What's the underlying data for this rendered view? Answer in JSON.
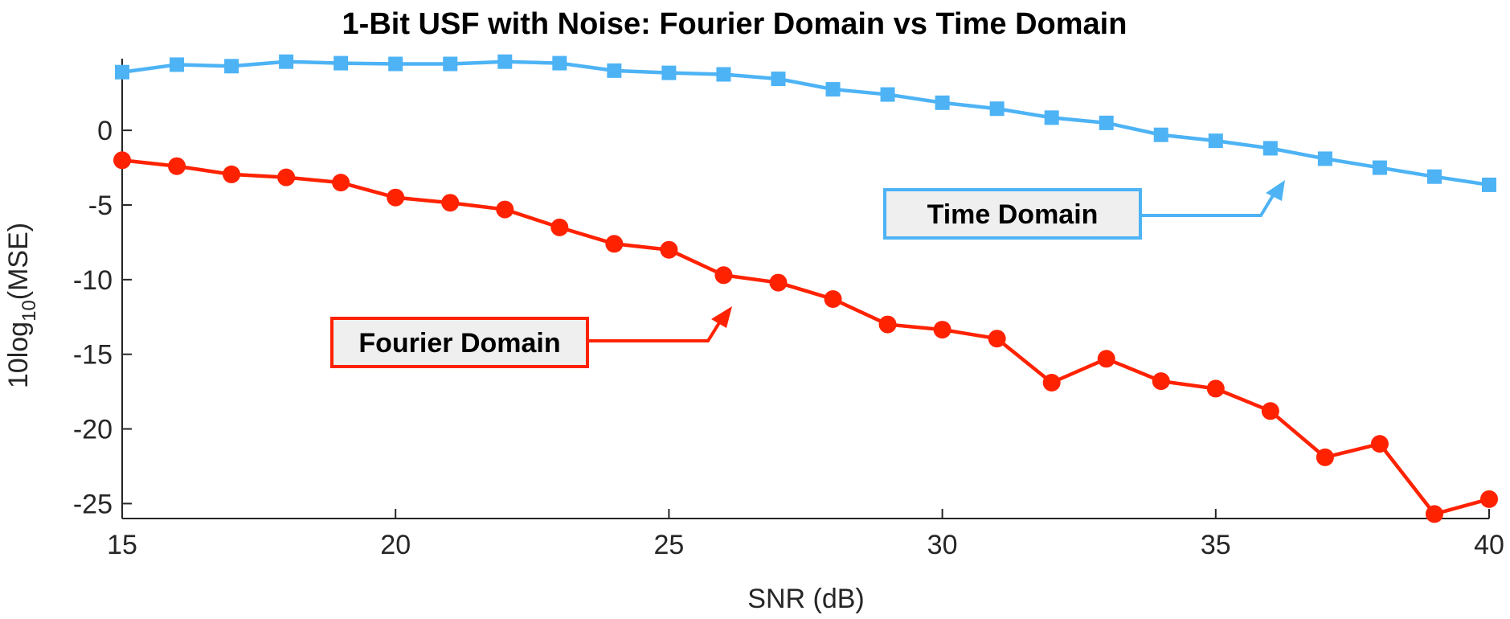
{
  "chart_data": {
    "type": "line",
    "title": "1-Bit USF with Noise: Fourier Domain vs Time Domain",
    "xlabel": "SNR (dB)",
    "ylabel_parts": [
      "10log",
      "10",
      "(MSE)"
    ],
    "xlim": [
      15,
      40
    ],
    "ylim": [
      -26,
      4.8
    ],
    "xticks": [
      15,
      20,
      25,
      30,
      35,
      40
    ],
    "yticks": [
      0,
      -5,
      -10,
      -15,
      -20,
      -25
    ],
    "x": [
      15,
      16,
      17,
      18,
      19,
      20,
      21,
      22,
      23,
      24,
      25,
      26,
      27,
      28,
      29,
      30,
      31,
      32,
      33,
      34,
      35,
      36,
      37,
      38,
      39,
      40
    ],
    "series": [
      {
        "name": "Time Domain",
        "color": "#4DB3F5",
        "marker": "square",
        "values": [
          3.9,
          4.4,
          4.3,
          4.6,
          4.5,
          4.45,
          4.45,
          4.6,
          4.5,
          4.0,
          3.85,
          3.75,
          3.45,
          2.75,
          2.4,
          1.85,
          1.45,
          0.85,
          0.5,
          -0.3,
          -0.7,
          -1.2,
          -1.9,
          -2.5,
          -3.1,
          -3.65
        ]
      },
      {
        "name": "Fourier Domain",
        "color": "#FF2200",
        "marker": "circle",
        "values": [
          -2.0,
          -2.4,
          -2.95,
          -3.15,
          -3.5,
          -4.5,
          -4.85,
          -5.3,
          -6.5,
          -7.6,
          -8.0,
          -9.7,
          -10.2,
          -11.3,
          -13.0,
          -13.35,
          -13.95,
          -16.9,
          -15.3,
          -16.8,
          -17.3,
          -18.8,
          -21.9,
          -21.0,
          -25.7,
          -24.7
        ]
      }
    ],
    "annotations": [
      {
        "text": "Time Domain",
        "series": "Time Domain",
        "color": "#4DB3F5"
      },
      {
        "text": "Fourier Domain",
        "series": "Fourier Domain",
        "color": "#FF2200"
      }
    ]
  }
}
